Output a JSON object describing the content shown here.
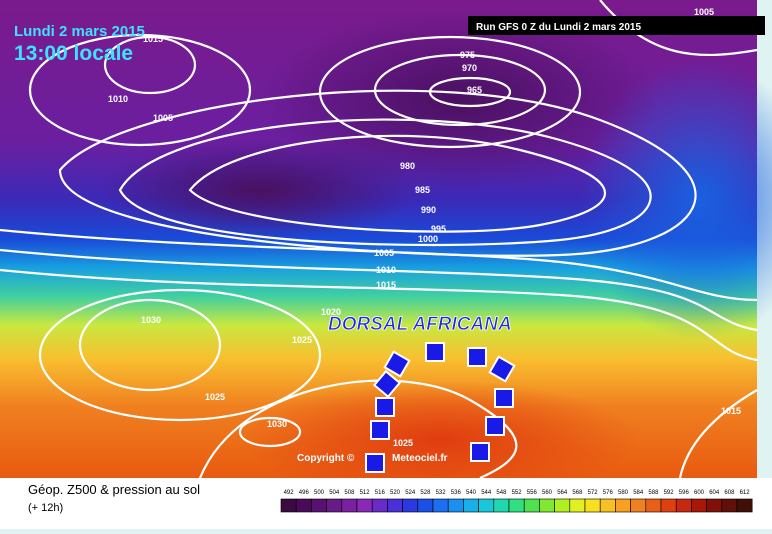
{
  "header": {
    "date": "Lundi 2 mars 2015",
    "time": "13:00 locale",
    "run": "Run GFS 0 Z du Lundi 2 mars 2015"
  },
  "map": {
    "isobar_labels": [
      "1015",
      "1010",
      "1005",
      "975",
      "970",
      "965",
      "980",
      "985",
      "990",
      "995",
      "1000",
      "1005",
      "1010",
      "1015",
      "1030",
      "1020",
      "1025",
      "1025",
      "1030",
      "1025",
      "1015",
      "1005"
    ],
    "annotation": "DORSAL AFRICANA",
    "copyright": "Copyright ©",
    "source": "Meteociel.fr"
  },
  "legend": {
    "title": "Géop. Z500 & pression au sol",
    "lead": "(+ 12h)",
    "scale": [
      492,
      496,
      500,
      504,
      508,
      512,
      516,
      520,
      524,
      528,
      532,
      536,
      540,
      544,
      548,
      552,
      556,
      560,
      564,
      568,
      572,
      576,
      580,
      584,
      588,
      592,
      596,
      600,
      604,
      608,
      612
    ]
  }
}
